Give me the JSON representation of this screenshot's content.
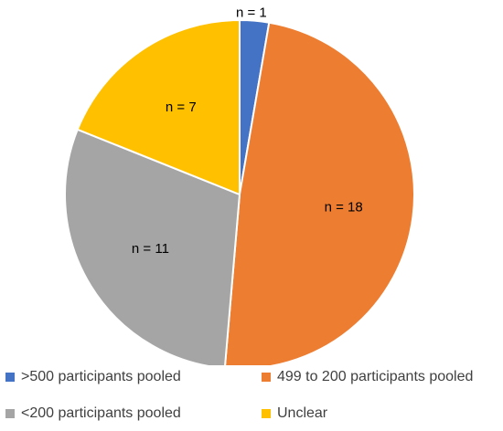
{
  "chart_data": {
    "type": "pie",
    "title": "",
    "start_angle_deg": 0,
    "direction": "clockwise",
    "slices": [
      {
        "label": ">500 participants pooled",
        "value": 1,
        "data_label": "n = 1",
        "color": "#4472C4"
      },
      {
        "label": "499 to 200 participants pooled",
        "value": 18,
        "data_label": "n = 18",
        "color": "#ED7D31"
      },
      {
        "label": "<200 participants pooled",
        "value": 11,
        "data_label": "n = 11",
        "color": "#A5A5A5"
      },
      {
        "label": "Unclear",
        "value": 7,
        "data_label": "n = 7",
        "color": "#FFC000"
      }
    ],
    "legend_position": "bottom"
  }
}
